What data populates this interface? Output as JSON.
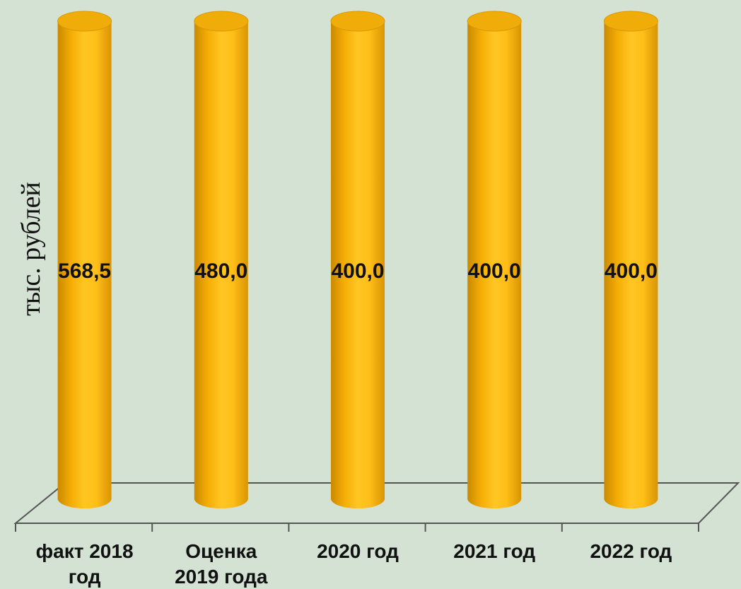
{
  "chart_data": {
    "type": "bar",
    "shape": "cylinder",
    "categories": [
      "факт 2018 год",
      "Оценка 2019 года",
      "2020 год",
      "2021 год",
      "2022 год"
    ],
    "category_lines": [
      [
        "факт 2018",
        "год"
      ],
      [
        "Оценка",
        "2019 года"
      ],
      [
        "2020 год"
      ],
      [
        "2021 год"
      ],
      [
        "2022 год"
      ]
    ],
    "values": [
      568.5,
      480.0,
      400.0,
      400.0,
      400.0
    ],
    "data_labels": [
      "568,5",
      "480,0",
      "400,0",
      "400,0",
      "400,0"
    ],
    "ylabel": "тыс. рублей",
    "title": "",
    "xlabel": "",
    "grid": false,
    "legend": "none",
    "colors": {
      "background": "#d4e2d4",
      "bar_light": "#ffc623",
      "bar_mid": "#f5ad05",
      "bar_dark": "#c98a02",
      "bar_top": "#f0ad0a",
      "axis": "#555555"
    }
  }
}
